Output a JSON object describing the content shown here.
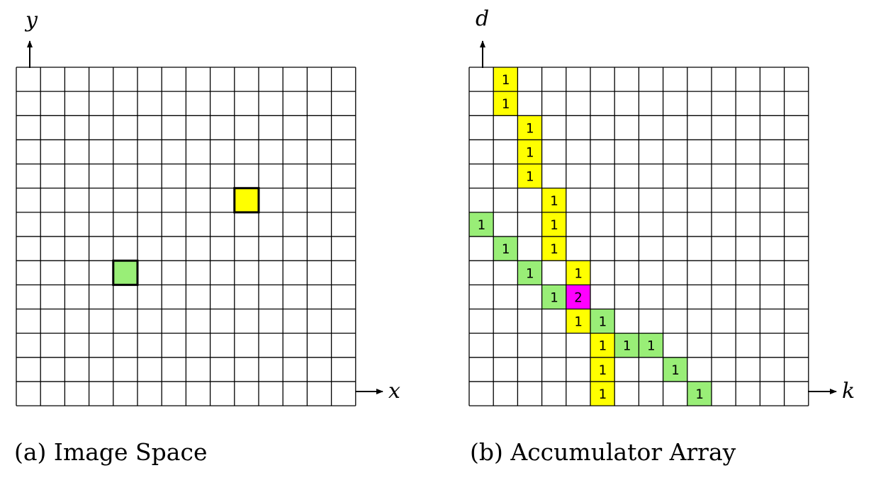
{
  "panels": [
    {
      "id": "image-space",
      "caption": "(a) Image Space",
      "x_axis": "x",
      "y_axis": "y",
      "columns": 14,
      "rows": 14,
      "cells": [
        {
          "col": 4,
          "row": 8,
          "color": "#99ee77",
          "value": "",
          "outlined": true
        },
        {
          "col": 9,
          "row": 5,
          "color": "#ffff00",
          "value": "",
          "outlined": true
        }
      ]
    },
    {
      "id": "accumulator-array",
      "caption": "(b) Accumulator Array",
      "x_axis": "k",
      "y_axis": "d",
      "columns": 14,
      "rows": 14,
      "cells": [
        {
          "col": 1,
          "row": 0,
          "color": "#ffff00",
          "value": "1"
        },
        {
          "col": 1,
          "row": 1,
          "color": "#ffff00",
          "value": "1"
        },
        {
          "col": 2,
          "row": 2,
          "color": "#ffff00",
          "value": "1"
        },
        {
          "col": 2,
          "row": 3,
          "color": "#ffff00",
          "value": "1"
        },
        {
          "col": 2,
          "row": 4,
          "color": "#ffff00",
          "value": "1"
        },
        {
          "col": 3,
          "row": 5,
          "color": "#ffff00",
          "value": "1"
        },
        {
          "col": 3,
          "row": 6,
          "color": "#ffff00",
          "value": "1"
        },
        {
          "col": 3,
          "row": 7,
          "color": "#ffff00",
          "value": "1"
        },
        {
          "col": 4,
          "row": 8,
          "color": "#ffff00",
          "value": "1"
        },
        {
          "col": 4,
          "row": 9,
          "color": "#ff00ff",
          "value": "2",
          "text_color": "#ffffff"
        },
        {
          "col": 4,
          "row": 10,
          "color": "#ffff00",
          "value": "1"
        },
        {
          "col": 5,
          "row": 11,
          "color": "#ffff00",
          "value": "1"
        },
        {
          "col": 5,
          "row": 12,
          "color": "#ffff00",
          "value": "1"
        },
        {
          "col": 5,
          "row": 13,
          "color": "#ffff00",
          "value": "1"
        },
        {
          "col": 0,
          "row": 6,
          "color": "#99ee77",
          "value": "1"
        },
        {
          "col": 1,
          "row": 7,
          "color": "#99ee77",
          "value": "1"
        },
        {
          "col": 2,
          "row": 8,
          "color": "#99ee77",
          "value": "1"
        },
        {
          "col": 3,
          "row": 9,
          "color": "#99ee77",
          "value": "1"
        },
        {
          "col": 5,
          "row": 10,
          "color": "#99ee77",
          "value": "1"
        },
        {
          "col": 6,
          "row": 11,
          "color": "#99ee77",
          "value": "1"
        },
        {
          "col": 7,
          "row": 11,
          "color": "#99ee77",
          "value": "1"
        },
        {
          "col": 8,
          "row": 12,
          "color": "#99ee77",
          "value": "1"
        },
        {
          "col": 9,
          "row": 13,
          "color": "#99ee77",
          "value": "1"
        }
      ]
    }
  ]
}
